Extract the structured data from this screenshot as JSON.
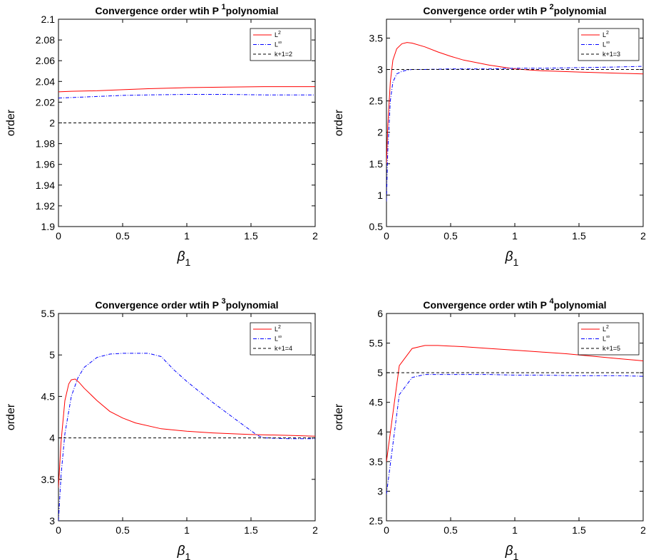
{
  "chart_data": [
    {
      "type": "line",
      "title_prefix": "Convergence order wtih P",
      "title_superscript": "1",
      "title_suffix": "polynomial",
      "xlabel_symbol": "β",
      "xlabel_subscript": "1",
      "ylabel": "order",
      "xlim": [
        0,
        2
      ],
      "ylim": [
        1.9,
        2.1
      ],
      "xticks": [
        "0",
        "0.5",
        "1",
        "1.5",
        "2"
      ],
      "yticks": [
        "1.9",
        "1.92",
        "1.94",
        "1.96",
        "1.98",
        "2",
        "2.02",
        "2.04",
        "2.06",
        "2.08",
        "2.1"
      ],
      "grid": false,
      "legend_position": "top-right",
      "series": [
        {
          "name": "L",
          "name_sup": "2",
          "color": "#ff0000",
          "style": "solid",
          "x": [
            0,
            0.1,
            0.3,
            0.5,
            0.7,
            1.0,
            1.3,
            1.6,
            2.0
          ],
          "y": [
            2.03,
            2.0305,
            2.031,
            2.032,
            2.033,
            2.034,
            2.0345,
            2.035,
            2.035
          ]
        },
        {
          "name": "L",
          "name_sup": "∞",
          "color": "#0000ff",
          "style": "dashdot",
          "x": [
            0,
            0.1,
            0.3,
            0.5,
            0.7,
            1.0,
            1.3,
            1.6,
            2.0
          ],
          "y": [
            2.024,
            2.0245,
            2.0255,
            2.0265,
            2.027,
            2.0275,
            2.0275,
            2.027,
            2.027
          ]
        },
        {
          "name": "k+1=2",
          "color": "#000000",
          "style": "dashed",
          "x": [
            0,
            2
          ],
          "y": [
            2,
            2
          ]
        }
      ]
    },
    {
      "type": "line",
      "title_prefix": "Convergence order wtih P",
      "title_superscript": "2",
      "title_suffix": "polynomial",
      "xlabel_symbol": "β",
      "xlabel_subscript": "1",
      "ylabel": "order",
      "xlim": [
        0,
        2
      ],
      "ylim": [
        0.5,
        3.8
      ],
      "xticks": [
        "0",
        "0.5",
        "1",
        "1.5",
        "2"
      ],
      "yticks": [
        "0.5",
        "1",
        "1.5",
        "2",
        "2.5",
        "3",
        "3.5"
      ],
      "grid": false,
      "legend_position": "top-right",
      "series": [
        {
          "name": "L",
          "name_sup": "2",
          "color": "#ff0000",
          "style": "solid",
          "x": [
            0,
            0.01,
            0.03,
            0.05,
            0.08,
            0.12,
            0.16,
            0.2,
            0.3,
            0.4,
            0.5,
            0.6,
            0.8,
            1.0,
            1.2,
            1.5,
            1.8,
            2.0
          ],
          "y": [
            1.5,
            2.1,
            2.8,
            3.15,
            3.33,
            3.41,
            3.43,
            3.42,
            3.36,
            3.28,
            3.21,
            3.15,
            3.07,
            3.01,
            2.98,
            2.96,
            2.94,
            2.93
          ]
        },
        {
          "name": "L",
          "name_sup": "∞",
          "color": "#0000ff",
          "style": "dashdot",
          "x": [
            0,
            0.01,
            0.03,
            0.05,
            0.08,
            0.12,
            0.16,
            0.2,
            0.3,
            0.5,
            0.8,
            1.0,
            1.2,
            1.5,
            1.8,
            2.0
          ],
          "y": [
            0.9,
            1.7,
            2.5,
            2.8,
            2.93,
            2.97,
            2.99,
            3.0,
            3.0,
            3.01,
            3.01,
            3.02,
            3.02,
            3.03,
            3.04,
            3.05
          ]
        },
        {
          "name": "k+1=3",
          "color": "#000000",
          "style": "dashed",
          "x": [
            0,
            2
          ],
          "y": [
            3,
            3
          ]
        }
      ]
    },
    {
      "type": "line",
      "title_prefix": "Convergence order wtih P",
      "title_superscript": "3",
      "title_suffix": "polynomial",
      "xlabel_symbol": "β",
      "xlabel_subscript": "1",
      "ylabel": "order",
      "xlim": [
        0,
        2
      ],
      "ylim": [
        3,
        5.5
      ],
      "xticks": [
        "0",
        "0.5",
        "1",
        "1.5",
        "2"
      ],
      "yticks": [
        "3",
        "3.5",
        "4",
        "4.5",
        "5",
        "5.5"
      ],
      "grid": false,
      "legend_position": "top-right",
      "series": [
        {
          "name": "L",
          "name_sup": "2",
          "color": "#ff0000",
          "style": "solid",
          "x": [
            0,
            0.02,
            0.05,
            0.08,
            0.1,
            0.13,
            0.16,
            0.2,
            0.3,
            0.4,
            0.5,
            0.6,
            0.8,
            1.0,
            1.2,
            1.5,
            1.8,
            2.0
          ],
          "y": [
            3.4,
            3.95,
            4.45,
            4.65,
            4.7,
            4.71,
            4.67,
            4.6,
            4.45,
            4.32,
            4.24,
            4.18,
            4.11,
            4.08,
            4.06,
            4.04,
            4.03,
            4.02
          ]
        },
        {
          "name": "L",
          "name_sup": "∞",
          "color": "#0000ff",
          "style": "dashdot",
          "x": [
            0,
            0.02,
            0.05,
            0.1,
            0.15,
            0.2,
            0.3,
            0.4,
            0.5,
            0.6,
            0.7,
            0.8,
            0.9,
            1.0,
            1.2,
            1.4,
            1.55,
            1.6,
            1.8,
            2.0
          ],
          "y": [
            3.0,
            3.55,
            4.05,
            4.5,
            4.72,
            4.85,
            4.97,
            5.01,
            5.02,
            5.02,
            5.02,
            4.98,
            4.82,
            4.68,
            4.43,
            4.2,
            4.03,
            4.0,
            3.99,
            3.99
          ]
        },
        {
          "name": "k+1=4",
          "color": "#000000",
          "style": "dashed",
          "x": [
            0,
            2
          ],
          "y": [
            4,
            4
          ]
        }
      ]
    },
    {
      "type": "line",
      "title_prefix": "Convergence order wtih P",
      "title_superscript": "4",
      "title_suffix": "polynomial",
      "xlabel_symbol": "β",
      "xlabel_subscript": "1",
      "ylabel": "order",
      "xlim": [
        0,
        2
      ],
      "ylim": [
        2.5,
        6
      ],
      "xticks": [
        "0",
        "0.5",
        "1",
        "1.5",
        "2"
      ],
      "yticks": [
        "2.5",
        "3",
        "3.5",
        "4",
        "4.5",
        "5",
        "5.5",
        "6"
      ],
      "grid": false,
      "legend_position": "top-right",
      "series": [
        {
          "name": "L",
          "name_sup": "2",
          "color": "#ff0000",
          "style": "solid",
          "x": [
            0,
            0.1,
            0.2,
            0.3,
            0.4,
            0.6,
            0.8,
            1.0,
            1.2,
            1.4,
            1.6,
            1.8,
            2.0
          ],
          "y": [
            3.5,
            5.12,
            5.41,
            5.46,
            5.46,
            5.44,
            5.41,
            5.38,
            5.35,
            5.32,
            5.28,
            5.24,
            5.2
          ]
        },
        {
          "name": "L",
          "name_sup": "∞",
          "color": "#0000ff",
          "style": "dashdot",
          "x": [
            0,
            0.1,
            0.2,
            0.3,
            0.5,
            0.8,
            1.0,
            1.2,
            1.5,
            1.8,
            2.0
          ],
          "y": [
            2.95,
            4.63,
            4.92,
            4.97,
            4.97,
            4.97,
            4.96,
            4.96,
            4.95,
            4.95,
            4.94
          ]
        },
        {
          "name": "k+1=5",
          "color": "#000000",
          "style": "dashed",
          "x": [
            0,
            2
          ],
          "y": [
            5,
            5
          ]
        }
      ]
    }
  ]
}
